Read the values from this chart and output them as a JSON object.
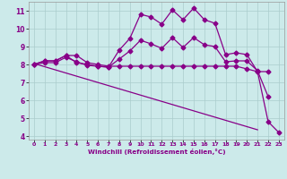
{
  "background_color": "#cceaea",
  "grid_color": "#aacccc",
  "line_color": "#880088",
  "xlabel": "Windchill (Refroidissement éolien,°C)",
  "xlim": [
    -0.5,
    23.5
  ],
  "ylim": [
    3.8,
    11.5
  ],
  "yticks": [
    4,
    5,
    6,
    7,
    8,
    9,
    10,
    11
  ],
  "xticks": [
    0,
    1,
    2,
    3,
    4,
    5,
    6,
    7,
    8,
    9,
    10,
    11,
    12,
    13,
    14,
    15,
    16,
    17,
    18,
    19,
    20,
    21,
    22,
    23
  ],
  "line1_x": [
    0,
    1,
    2,
    3,
    4,
    5,
    6,
    7,
    8,
    9,
    10,
    11,
    12,
    13,
    14,
    15,
    16,
    17,
    18,
    19,
    20,
    21,
    22
  ],
  "line1_y": [
    8.0,
    8.2,
    8.2,
    8.5,
    8.5,
    8.1,
    8.0,
    7.9,
    7.9,
    7.9,
    7.9,
    7.9,
    7.9,
    7.9,
    7.9,
    7.9,
    7.9,
    7.9,
    7.9,
    7.9,
    7.75,
    7.6,
    7.6
  ],
  "line2_x": [
    0,
    1,
    2,
    3,
    4,
    5,
    6,
    7,
    8,
    9,
    10,
    11,
    12,
    13,
    14,
    15,
    16,
    17,
    18,
    19,
    20,
    21,
    22,
    23
  ],
  "line2_y": [
    8.0,
    8.2,
    8.2,
    8.5,
    8.1,
    8.0,
    7.9,
    7.85,
    8.8,
    9.45,
    10.8,
    10.65,
    10.25,
    11.05,
    10.5,
    11.15,
    10.5,
    10.3,
    8.55,
    8.65,
    8.55,
    7.6,
    4.8,
    4.2
  ],
  "line3_x": [
    0,
    1,
    2,
    3,
    4,
    5,
    6,
    7,
    8,
    9,
    10,
    11,
    12,
    13,
    14,
    15,
    16,
    17,
    18,
    19,
    20,
    21,
    22
  ],
  "line3_y": [
    8.0,
    8.1,
    8.1,
    8.4,
    8.15,
    7.95,
    7.9,
    7.85,
    8.3,
    8.75,
    9.35,
    9.15,
    8.9,
    9.5,
    8.95,
    9.5,
    9.1,
    9.0,
    8.15,
    8.2,
    8.2,
    7.65,
    6.2
  ],
  "line4_x": [
    0,
    21
  ],
  "line4_y": [
    8.05,
    4.35
  ]
}
